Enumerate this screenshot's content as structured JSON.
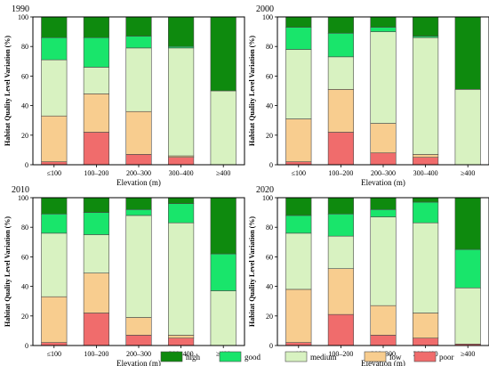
{
  "chart_data": {
    "type": "bar",
    "stacked": true,
    "xlabel": "Elevation (m)",
    "ylabel": "Habitat Quality Level Variation (%)",
    "ylim": [
      0,
      100
    ],
    "yticks": [
      0,
      20,
      40,
      60,
      80,
      100
    ],
    "categories": [
      "≤100",
      "100–200",
      "200–300",
      "300–400",
      "≥400"
    ],
    "legend": [
      "high",
      "good",
      "medium",
      "low",
      "poor"
    ],
    "legend_position": "bottom-right",
    "grid": false,
    "colors": {
      "poor": "#f06c6c",
      "low": "#f8cd8f",
      "medium": "#d8f2c1",
      "good": "#19e56b",
      "high": "#0e8a0e"
    },
    "panels": [
      {
        "title": "1990",
        "series": [
          {
            "name": "poor",
            "values": [
              2,
              22,
              7,
              5,
              0
            ]
          },
          {
            "name": "low",
            "values": [
              31,
              26,
              29,
              1,
              0
            ]
          },
          {
            "name": "medium",
            "values": [
              38,
              18,
              43,
              73,
              50
            ]
          },
          {
            "name": "good",
            "values": [
              15,
              20,
              8,
              1,
              0
            ]
          },
          {
            "name": "high",
            "values": [
              14,
              14,
              13,
              20,
              50
            ]
          }
        ]
      },
      {
        "title": "2000",
        "series": [
          {
            "name": "poor",
            "values": [
              2,
              22,
              8,
              5,
              0
            ]
          },
          {
            "name": "low",
            "values": [
              29,
              29,
              20,
              2,
              0
            ]
          },
          {
            "name": "medium",
            "values": [
              47,
              22,
              62,
              79,
              51
            ]
          },
          {
            "name": "good",
            "values": [
              15,
              16,
              3,
              1,
              0
            ]
          },
          {
            "name": "high",
            "values": [
              7,
              11,
              7,
              13,
              49
            ]
          }
        ]
      },
      {
        "title": "2010",
        "series": [
          {
            "name": "poor",
            "values": [
              2,
              22,
              7,
              5,
              0
            ]
          },
          {
            "name": "low",
            "values": [
              31,
              27,
              12,
              2,
              0
            ]
          },
          {
            "name": "medium",
            "values": [
              43,
              26,
              69,
              76,
              37
            ]
          },
          {
            "name": "good",
            "values": [
              13,
              15,
              4,
              13,
              25
            ]
          },
          {
            "name": "high",
            "values": [
              11,
              10,
              8,
              4,
              38
            ]
          }
        ]
      },
      {
        "title": "2020",
        "series": [
          {
            "name": "poor",
            "values": [
              2,
              21,
              7,
              5,
              1
            ]
          },
          {
            "name": "low",
            "values": [
              36,
              31,
              20,
              17,
              0
            ]
          },
          {
            "name": "medium",
            "values": [
              38,
              22,
              60,
              61,
              38
            ]
          },
          {
            "name": "good",
            "values": [
              12,
              15,
              5,
              14,
              26
            ]
          },
          {
            "name": "high",
            "values": [
              12,
              11,
              8,
              3,
              35
            ]
          }
        ]
      }
    ]
  }
}
